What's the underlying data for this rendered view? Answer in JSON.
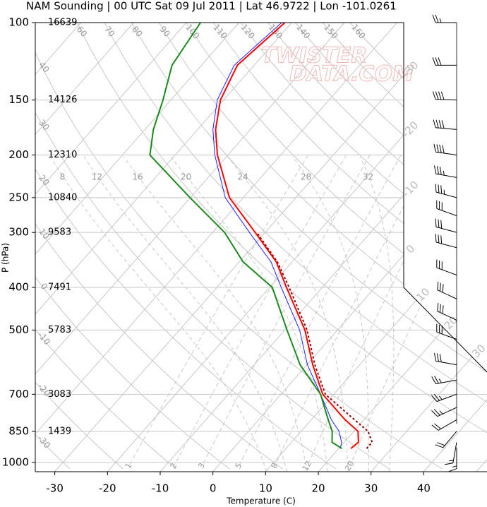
{
  "chart_data": {
    "type": "skewt",
    "title": "NAM Sounding | 00 UTC Sat 09 Jul 2011 | Lat 46.9722 | Lon -101.0261",
    "xlabel": "Temperature (C)",
    "ylabel": "P (hPa)",
    "watermark": [
      "TWISTER",
      "DATA.COM"
    ],
    "xlim": [
      -33.7,
      52
    ],
    "ylim": [
      1050,
      100
    ],
    "y_scale": "log",
    "xticks": [
      -30,
      -20,
      -10,
      0,
      10,
      20,
      30,
      40
    ],
    "yticks": [
      100,
      150,
      200,
      250,
      300,
      400,
      500,
      700,
      850,
      1000
    ],
    "grid": true,
    "series": [
      {
        "color": "#1f1fff",
        "style": "solid",
        "pressure": [
          930,
          900,
          850,
          800,
          700,
          600,
          500,
          400,
          350,
          300,
          250,
          200,
          175,
          150,
          125,
          100
        ],
        "values": [
          20.3,
          19.5,
          17.2,
          13.8,
          7.5,
          0.1,
          -7.2,
          -17.8,
          -24.0,
          -33.0,
          -43.4,
          -52.5,
          -57.1,
          -61.2,
          -63.8,
          -61.9
        ]
      },
      {
        "color": "#8b0000",
        "style": "dotted",
        "pressure": [
          930,
          900,
          850,
          800,
          700,
          600,
          500,
          400,
          350,
          300
        ],
        "values": [
          25.3,
          25.3,
          22.7,
          18.2,
          8.4,
          1.5,
          -5.8,
          -16.3,
          -22.8,
          -31.6
        ]
      },
      {
        "color": "#ff0000",
        "style": "solid",
        "pressure": [
          930,
          900,
          850,
          800,
          700,
          600,
          500,
          400,
          350,
          300,
          250,
          200,
          175,
          150,
          125,
          100
        ],
        "values": [
          22.3,
          22.7,
          20.8,
          16.4,
          7.9,
          1.1,
          -6.2,
          -16.8,
          -23.0,
          -31.9,
          -42.6,
          -52.0,
          -56.6,
          -60.6,
          -63.2,
          -61.3
        ]
      },
      {
        "color": "#1a8a1a",
        "style": "solid",
        "pressure": [
          930,
          900,
          850,
          800,
          700,
          600,
          500,
          400,
          350,
          300,
          250,
          200,
          175,
          150,
          125,
          100
        ],
        "values": [
          20.6,
          17.7,
          15.9,
          13.2,
          7.5,
          -1.3,
          -9.6,
          -19.5,
          -29.3,
          -37.7,
          -50.1,
          -64.8,
          -68.4,
          -71.5,
          -75.6,
          -77.3
        ]
      }
    ],
    "height_labels": {
      "pressure": [
        100,
        150,
        200,
        250,
        300,
        400,
        500,
        700,
        850
      ],
      "values": [
        16639,
        14126,
        12310,
        10840,
        9583,
        7491,
        5783,
        3083,
        1439
      ]
    },
    "isotherms": [
      -110,
      -100,
      -90,
      -80,
      -70,
      -60,
      -50,
      -40,
      -30,
      -20,
      -10,
      0,
      10,
      20,
      30,
      40,
      50
    ],
    "isotherm_labels": [
      -30,
      -20,
      -10,
      0,
      10,
      20,
      30
    ],
    "dry_adiabat_labels_top": [
      60,
      70,
      80,
      90,
      100,
      110,
      120,
      130,
      140,
      150,
      160
    ],
    "dry_adiabat_labels_left": [
      40,
      30,
      20,
      10,
      0,
      -10,
      -20,
      -30
    ],
    "moist_adiabat_labels": [
      8,
      12,
      16,
      20,
      24,
      28,
      32
    ],
    "mixing_ratio_labels": [
      1,
      2,
      3,
      5,
      8,
      12,
      20
    ],
    "wind": {
      "pressure": [
        100,
        125,
        150,
        175,
        200,
        225,
        250,
        275,
        300,
        325,
        375,
        425,
        475,
        525,
        600,
        650,
        700,
        750,
        800,
        850,
        900,
        925
      ],
      "direction": [
        270,
        270,
        272,
        275,
        278,
        280,
        285,
        290,
        285,
        285,
        290,
        295,
        295,
        290,
        280,
        260,
        250,
        245,
        240,
        220,
        190,
        180
      ],
      "speed": [
        25,
        30,
        40,
        40,
        40,
        35,
        35,
        30,
        30,
        30,
        30,
        30,
        30,
        30,
        30,
        25,
        25,
        25,
        20,
        20,
        15,
        15
      ]
    }
  }
}
